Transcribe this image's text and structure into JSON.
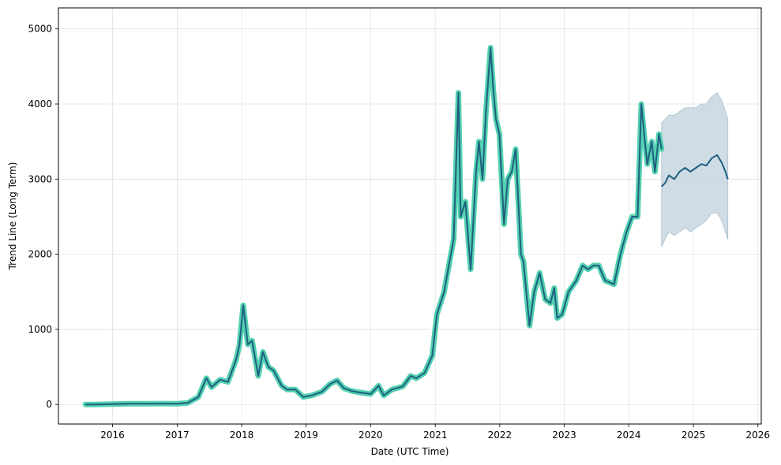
{
  "chart_data": {
    "type": "line",
    "title": "",
    "xlabel": "Date (UTC Time)",
    "ylabel": "Trend Line (Long Term)",
    "xlim": [
      "2015-03-01",
      "2026-01-20"
    ],
    "ylim": [
      -260,
      5280
    ],
    "x_ticks": [
      "2016",
      "2017",
      "2018",
      "2019",
      "2020",
      "2021",
      "2022",
      "2023",
      "2024",
      "2025",
      "2026"
    ],
    "y_ticks": [
      0,
      1000,
      2000,
      3000,
      4000,
      5000
    ],
    "grid": true,
    "colors": {
      "actual": "#52d1b0",
      "trend": "#1f5f7f",
      "band": "#c7d6e0"
    },
    "series": [
      {
        "name": "",
        "role": "actual",
        "x": [
          "2015-08-01",
          "2015-10-01",
          "2016-01-01",
          "2016-04-01",
          "2016-07-01",
          "2016-10-01",
          "2017-01-01",
          "2017-03-01",
          "2017-05-01",
          "2017-06-15",
          "2017-07-15",
          "2017-09-01",
          "2017-10-15",
          "2017-12-01",
          "2017-12-20",
          "2018-01-10",
          "2018-02-05",
          "2018-03-01",
          "2018-04-05",
          "2018-05-01",
          "2018-06-01",
          "2018-07-01",
          "2018-08-15",
          "2018-09-15",
          "2018-11-01",
          "2018-12-15",
          "2019-02-01",
          "2019-04-01",
          "2019-05-15",
          "2019-06-25",
          "2019-08-01",
          "2019-09-15",
          "2019-11-01",
          "2020-01-01",
          "2020-02-15",
          "2020-03-15",
          "2020-05-01",
          "2020-07-01",
          "2020-08-15",
          "2020-09-15",
          "2020-11-01",
          "2020-12-15",
          "2021-01-10",
          "2021-02-20",
          "2021-03-15",
          "2021-04-15",
          "2021-05-12",
          "2021-05-25",
          "2021-06-20",
          "2021-07-20",
          "2021-08-20",
          "2021-09-05",
          "2021-09-25",
          "2021-10-15",
          "2021-11-10",
          "2021-11-25",
          "2021-12-10",
          "2021-12-30",
          "2022-01-25",
          "2022-02-15",
          "2022-03-10",
          "2022-04-01",
          "2022-05-01",
          "2022-05-15",
          "2022-06-18",
          "2022-07-15",
          "2022-08-15",
          "2022-09-15",
          "2022-10-15",
          "2022-11-05",
          "2022-11-22",
          "2022-12-20",
          "2023-01-25",
          "2023-03-10",
          "2023-04-15",
          "2023-05-15",
          "2023-06-15",
          "2023-07-15",
          "2023-08-20",
          "2023-10-10",
          "2023-11-15",
          "2023-12-20",
          "2024-01-20",
          "2024-02-20",
          "2024-03-12",
          "2024-04-01",
          "2024-04-15",
          "2024-05-10",
          "2024-05-28",
          "2024-06-20",
          "2024-07-05"
        ],
        "y": [
          0,
          0,
          5,
          10,
          10,
          12,
          10,
          20,
          100,
          350,
          230,
          330,
          300,
          600,
          800,
          1320,
          800,
          850,
          380,
          700,
          500,
          450,
          250,
          200,
          200,
          100,
          120,
          170,
          270,
          320,
          220,
          180,
          160,
          140,
          250,
          120,
          200,
          240,
          380,
          350,
          420,
          650,
          1200,
          1500,
          1800,
          2200,
          4150,
          2500,
          2700,
          1800,
          3100,
          3500,
          3000,
          3900,
          4750,
          4200,
          3800,
          3600,
          2400,
          3000,
          3100,
          3400,
          2000,
          1900,
          1050,
          1500,
          1750,
          1400,
          1350,
          1550,
          1150,
          1200,
          1500,
          1650,
          1850,
          1800,
          1850,
          1850,
          1650,
          1600,
          2000,
          2300,
          2500,
          2500,
          4000,
          3500,
          3200,
          3500,
          3100,
          3600,
          3400
        ]
      },
      {
        "name": "",
        "role": "forecast",
        "x": [
          "2024-07-05",
          "2024-07-25",
          "2024-08-15",
          "2024-09-15",
          "2024-10-15",
          "2024-11-15",
          "2024-12-15",
          "2025-01-15",
          "2025-02-15",
          "2025-03-15",
          "2025-04-15",
          "2025-05-15",
          "2025-06-10",
          "2025-07-01",
          "2025-07-15"
        ],
        "y": [
          2900,
          2950,
          3050,
          3000,
          3100,
          3150,
          3100,
          3150,
          3200,
          3180,
          3280,
          3320,
          3220,
          3100,
          3000
        ],
        "lower": [
          2100,
          2200,
          2300,
          2250,
          2300,
          2350,
          2300,
          2350,
          2400,
          2450,
          2550,
          2550,
          2450,
          2300,
          2200
        ],
        "upper": [
          3750,
          3800,
          3850,
          3850,
          3900,
          3950,
          3950,
          3950,
          4000,
          4000,
          4100,
          4150,
          4050,
          3900,
          3800
        ]
      }
    ]
  }
}
